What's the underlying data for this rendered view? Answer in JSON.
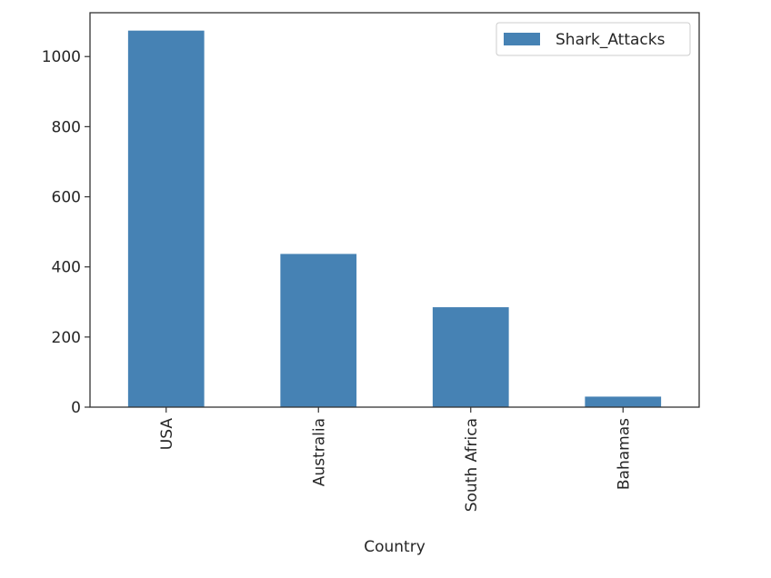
{
  "chart_data": {
    "type": "bar",
    "title": "",
    "xlabel": "Country",
    "ylabel": "",
    "categories": [
      "USA",
      "Australia",
      "South Africa",
      "Bahamas"
    ],
    "series": [
      {
        "name": "Shark_Attacks",
        "values": [
          1074,
          437,
          285,
          30
        ]
      }
    ],
    "ylim": [
      0,
      1125
    ],
    "yticks": [
      0,
      200,
      400,
      600,
      800,
      1000
    ],
    "legend": "top-right",
    "grid": false,
    "colors": {
      "bar": "#4682b4",
      "axis": "#333333",
      "text": "#262626"
    }
  }
}
